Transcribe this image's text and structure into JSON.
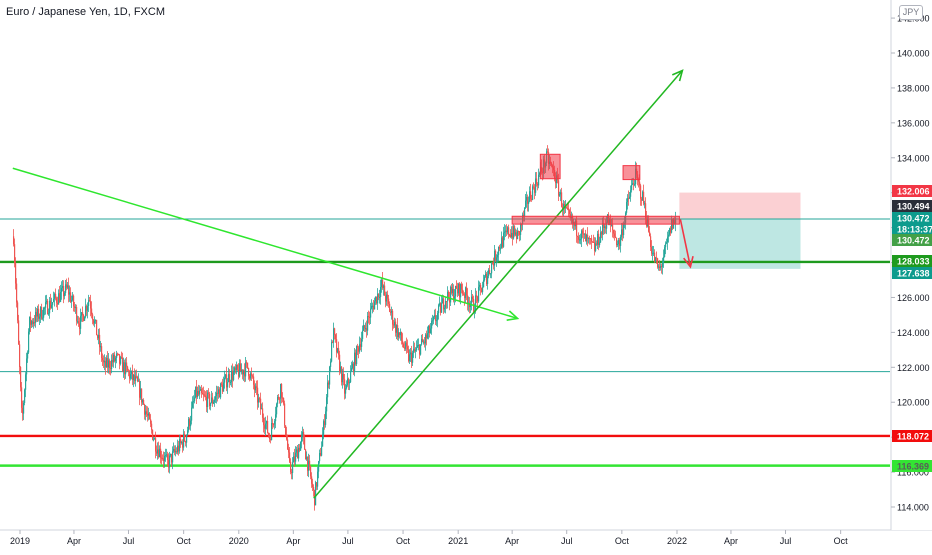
{
  "header": {
    "symbol_title": "Euro / Japanese Yen, 1D, FXCM",
    "currency_badge": "JPY"
  },
  "chart_data": {
    "type": "candlestick",
    "title": "Euro / Japanese Yen, 1D, FXCM",
    "y_axis": {
      "side": "right",
      "range": [
        113.4,
        142.9
      ],
      "ticks": [
        "114.000",
        "116.000",
        "118.000",
        "120.000",
        "122.000",
        "124.000",
        "126.000",
        "128.000",
        "130.000",
        "132.000",
        "134.000",
        "136.000",
        "138.000",
        "140.000",
        "142.000"
      ]
    },
    "x_axis": {
      "ticks": [
        "2019",
        "Apr",
        "Jul",
        "Oct",
        "2020",
        "Apr",
        "Jul",
        "Oct",
        "2021",
        "Apr",
        "Jul",
        "Oct",
        "2022",
        "Apr",
        "Jul",
        "Oct"
      ]
    },
    "price_path": [
      [
        "2018-12-20",
        129.5
      ],
      [
        "2019-01-03",
        118.8
      ],
      [
        "2019-01-15",
        124.5
      ],
      [
        "2019-02-15",
        125.5
      ],
      [
        "2019-03-20",
        126.5
      ],
      [
        "2019-04-10",
        124.5
      ],
      [
        "2019-04-25",
        126.0
      ],
      [
        "2019-05-20",
        122.0
      ],
      [
        "2019-06-10",
        122.5
      ],
      [
        "2019-07-15",
        121.0
      ],
      [
        "2019-08-15",
        117.5
      ],
      [
        "2019-09-03",
        116.5
      ],
      [
        "2019-10-03",
        118.0
      ],
      [
        "2019-10-20",
        120.5
      ],
      [
        "2019-11-15",
        120.0
      ],
      [
        "2019-12-15",
        121.5
      ],
      [
        "2020-01-15",
        122.0
      ],
      [
        "2020-02-20",
        118.0
      ],
      [
        "2020-03-10",
        121.0
      ],
      [
        "2020-03-25",
        116.0
      ],
      [
        "2020-04-15",
        118.0
      ],
      [
        "2020-05-05",
        114.5
      ],
      [
        "2020-05-20",
        118.5
      ],
      [
        "2020-06-05",
        124.0
      ],
      [
        "2020-06-25",
        120.5
      ],
      [
        "2020-07-20",
        123.5
      ],
      [
        "2020-08-10",
        125.5
      ],
      [
        "2020-08-25",
        126.7
      ],
      [
        "2020-09-15",
        124.5
      ],
      [
        "2020-10-10",
        122.5
      ],
      [
        "2020-11-05",
        123.5
      ],
      [
        "2020-12-10",
        126.0
      ],
      [
        "2021-01-05",
        126.5
      ],
      [
        "2021-01-25",
        125.5
      ],
      [
        "2021-02-20",
        127.5
      ],
      [
        "2021-03-10",
        129.0
      ],
      [
        "2021-03-25",
        129.8
      ],
      [
        "2021-04-10",
        129.5
      ],
      [
        "2021-04-25",
        131.5
      ],
      [
        "2021-05-15",
        133.0
      ],
      [
        "2021-05-28",
        134.0
      ],
      [
        "2021-06-10",
        133.0
      ],
      [
        "2021-06-25",
        131.0
      ],
      [
        "2021-07-10",
        130.2
      ],
      [
        "2021-07-25",
        129.5
      ],
      [
        "2021-08-15",
        128.8
      ],
      [
        "2021-09-05",
        130.5
      ],
      [
        "2021-09-25",
        129.0
      ],
      [
        "2021-10-10",
        131.5
      ],
      [
        "2021-10-22",
        133.0
      ],
      [
        "2021-11-05",
        131.5
      ],
      [
        "2021-11-20",
        128.5
      ],
      [
        "2021-12-01",
        127.5
      ],
      [
        "2021-12-10",
        128.5
      ],
      [
        "2021-12-22",
        130.2
      ],
      [
        "2021-12-30",
        130.5
      ]
    ],
    "horizontal_levels": [
      {
        "price": 130.494,
        "color": "#26a69a",
        "weight": "thin"
      },
      {
        "price": 128.033,
        "color": "#1e9a1e",
        "weight": "thick"
      },
      {
        "price": 121.75,
        "color": "#26a69a",
        "weight": "thin"
      },
      {
        "price": 118.072,
        "color": "#f20d0d",
        "weight": "thick"
      },
      {
        "price": 116.369,
        "color": "#33e533",
        "weight": "thick"
      }
    ],
    "trendlines": [
      {
        "from": [
          "2018-12-20",
          133.4
        ],
        "to": [
          "2021-04-10",
          124.8
        ],
        "color": "#2ee62e",
        "arrow": true
      },
      {
        "from": [
          "2020-05-05",
          114.5
        ],
        "to": [
          "2022-01-10",
          139.0
        ],
        "color": "#22b822",
        "arrow": true
      }
    ],
    "highlight_boxes": [
      {
        "from": [
          "2021-05-18",
          134.2
        ],
        "to": [
          "2021-06-20",
          132.8
        ],
        "color": "#f23645"
      },
      {
        "from": [
          "2021-10-03",
          133.55
        ],
        "to": [
          "2021-10-31",
          132.75
        ],
        "color": "#f23645"
      },
      {
        "from": [
          "2021-04-01",
          130.65
        ],
        "to": [
          "2022-01-05",
          130.2
        ],
        "color": "#f23645"
      }
    ],
    "position_tool": {
      "start": "2022-01-05",
      "end": "2022-07-26",
      "entry": 130.472,
      "stop": 132.006,
      "target": 127.638,
      "risk_color": "#f7a1a8",
      "reward_color": "#7ecfc8"
    },
    "price_labels": [
      {
        "text": "132.006",
        "price": 132.006,
        "bg": "#f23645",
        "fg": "#ffffff"
      },
      {
        "text": "130.494",
        "price": 130.494,
        "bg": "#2a2e39",
        "fg": "#ffffff"
      },
      {
        "text": "130.472",
        "price": 130.472,
        "bg": "#0d9b8d",
        "fg": "#ffffff"
      },
      {
        "text": "18:13:37",
        "price": 130.472,
        "bg": "#0d9b8d",
        "fg": "#ffffff"
      },
      {
        "text": "130.472",
        "price": 130.472,
        "bg": "#43a047",
        "fg": "#ffffff"
      },
      {
        "text": "128.033",
        "price": 128.033,
        "bg": "#1e9a1e",
        "fg": "#ffffff"
      },
      {
        "text": "127.638",
        "price": 127.638,
        "bg": "#0d9b8d",
        "fg": "#ffffff"
      },
      {
        "text": "118.072",
        "price": 118.072,
        "bg": "#f20d0d",
        "fg": "#ffffff"
      },
      {
        "text": "116.369",
        "price": 116.369,
        "bg": "#33e533",
        "fg": "#5a5a5a"
      }
    ],
    "candle_colors": {
      "up": "#26a69a",
      "down": "#ef5350"
    },
    "grid": false
  }
}
